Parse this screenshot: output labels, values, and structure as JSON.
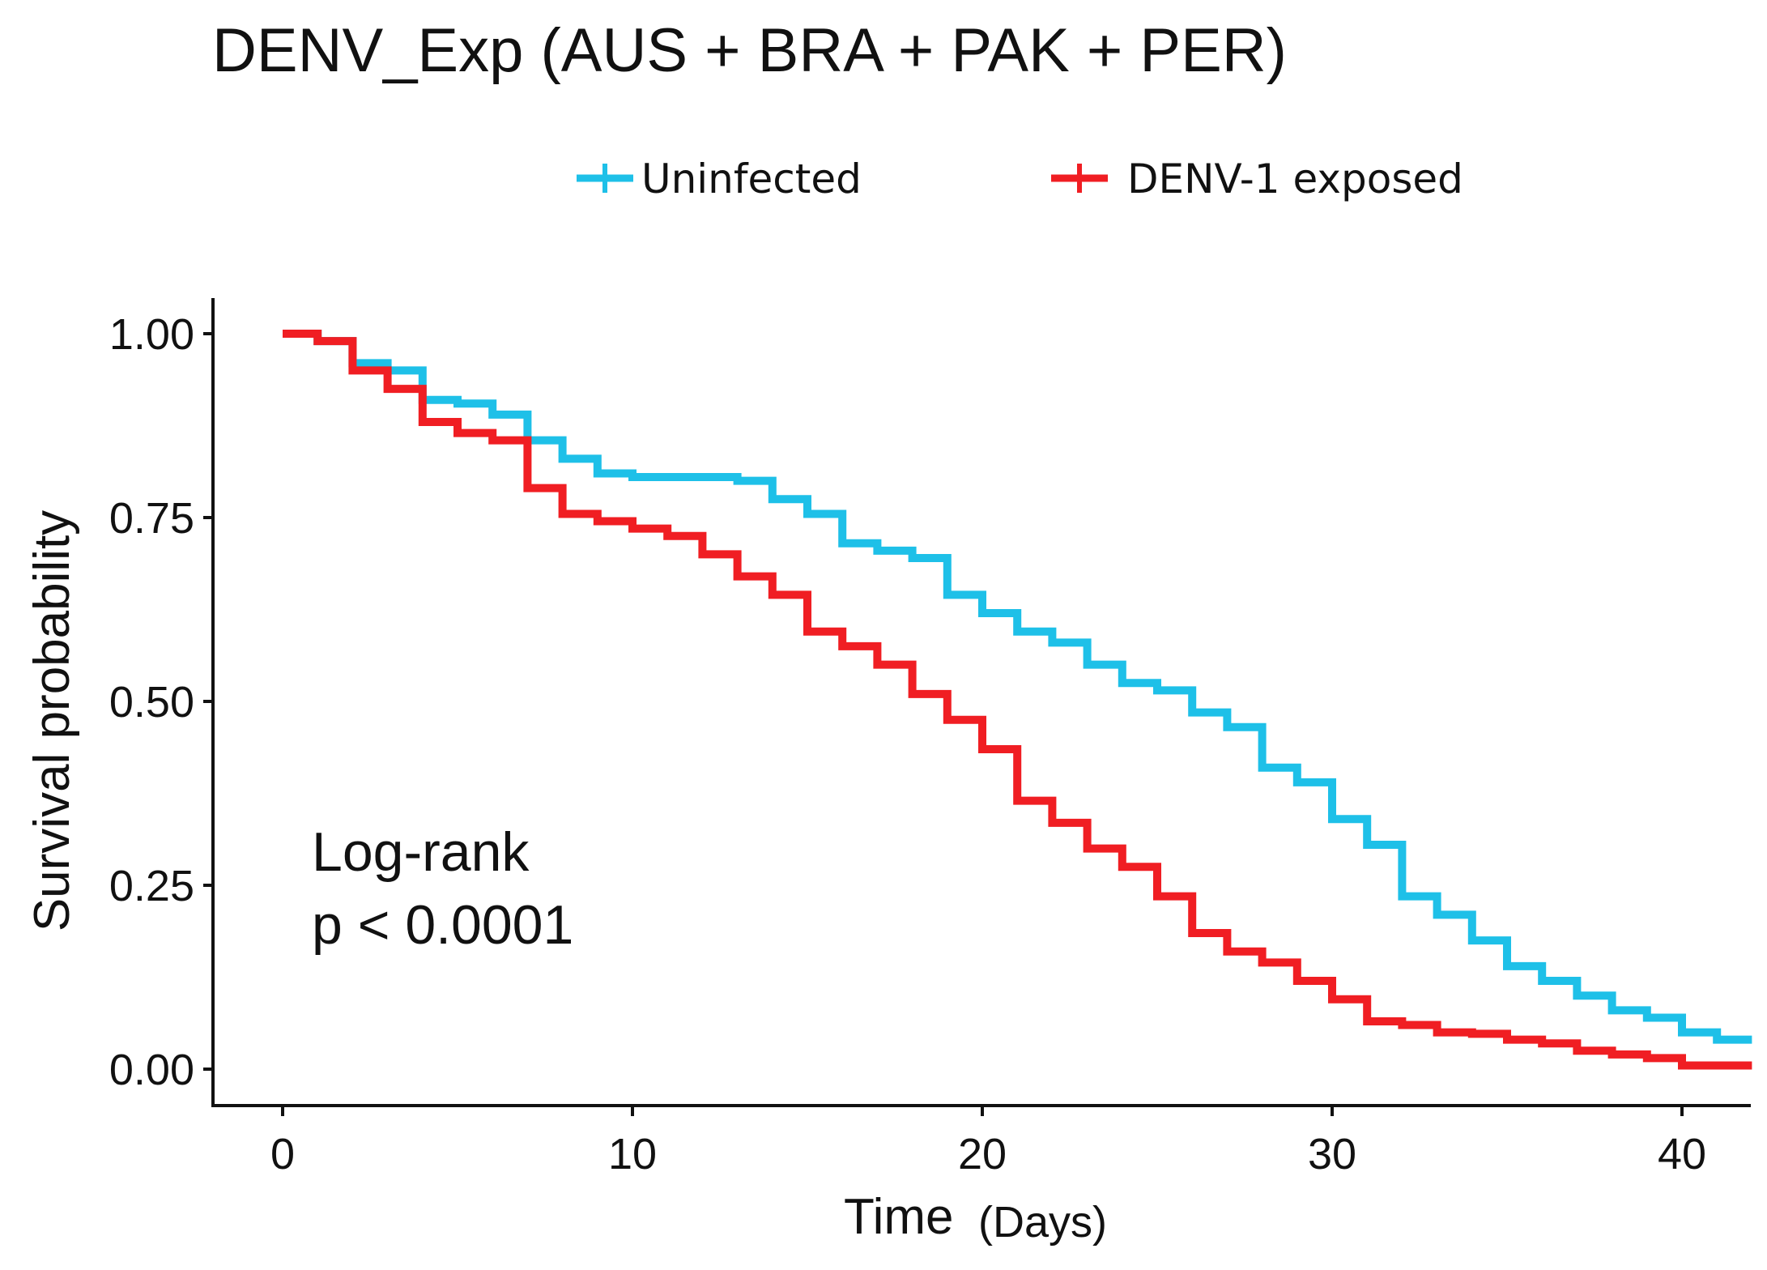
{
  "chart_data": {
    "type": "line",
    "subtype": "kaplan-meier step",
    "title": "DENV_Exp (AUS + BRA + PAK + PER)",
    "xlabel": "Time",
    "xlabel_unit": "(Days)",
    "ylabel": "Survival probability",
    "xlim": [
      0,
      42
    ],
    "ylim": [
      0,
      1
    ],
    "x_ticks": [
      0,
      10,
      20,
      30,
      40
    ],
    "x_tick_labels": [
      "0",
      "10",
      "20",
      "30",
      "40"
    ],
    "y_ticks": [
      0,
      0.25,
      0.5,
      0.75,
      1.0
    ],
    "y_tick_labels": [
      "0.00",
      "0.25",
      "0.50",
      "0.75",
      "1.00"
    ],
    "grid": false,
    "legend_position": "top",
    "annotation": {
      "line1": "Log-rank",
      "line2": "p < 0.0001"
    },
    "series": [
      {
        "name": "Uninfected",
        "color": "#1EC0E8",
        "x": [
          0,
          1,
          2,
          3,
          4,
          5,
          6,
          7,
          8,
          9,
          10,
          13,
          14,
          15,
          16,
          17,
          18,
          19,
          20,
          21,
          22,
          23,
          24,
          25,
          26,
          27,
          28,
          29,
          30,
          31,
          32,
          33,
          34,
          35,
          36,
          37,
          38,
          39,
          40,
          41,
          42
        ],
        "y": [
          1.0,
          0.99,
          0.96,
          0.95,
          0.91,
          0.905,
          0.89,
          0.855,
          0.83,
          0.81,
          0.805,
          0.8,
          0.775,
          0.755,
          0.715,
          0.705,
          0.695,
          0.645,
          0.62,
          0.595,
          0.58,
          0.55,
          0.525,
          0.515,
          0.485,
          0.465,
          0.41,
          0.39,
          0.34,
          0.305,
          0.235,
          0.21,
          0.175,
          0.14,
          0.12,
          0.1,
          0.08,
          0.07,
          0.05,
          0.04,
          0.04
        ]
      },
      {
        "name": "DENV-1 exposed",
        "color": "#F01E23",
        "x": [
          0,
          1,
          2,
          3,
          4,
          5,
          6,
          7,
          8,
          9,
          10,
          11,
          12,
          13,
          14,
          15,
          16,
          17,
          18,
          19,
          20,
          21,
          22,
          23,
          24,
          25,
          26,
          27,
          28,
          29,
          30,
          31,
          32,
          33,
          34,
          35,
          36,
          37,
          38,
          39,
          40,
          41,
          42
        ],
        "y": [
          1.0,
          0.99,
          0.95,
          0.925,
          0.88,
          0.865,
          0.855,
          0.79,
          0.755,
          0.745,
          0.735,
          0.725,
          0.7,
          0.67,
          0.645,
          0.595,
          0.575,
          0.55,
          0.51,
          0.475,
          0.435,
          0.365,
          0.335,
          0.3,
          0.275,
          0.235,
          0.185,
          0.16,
          0.145,
          0.12,
          0.095,
          0.065,
          0.06,
          0.05,
          0.048,
          0.04,
          0.035,
          0.025,
          0.02,
          0.015,
          0.005,
          0.005,
          0.005
        ]
      }
    ]
  }
}
